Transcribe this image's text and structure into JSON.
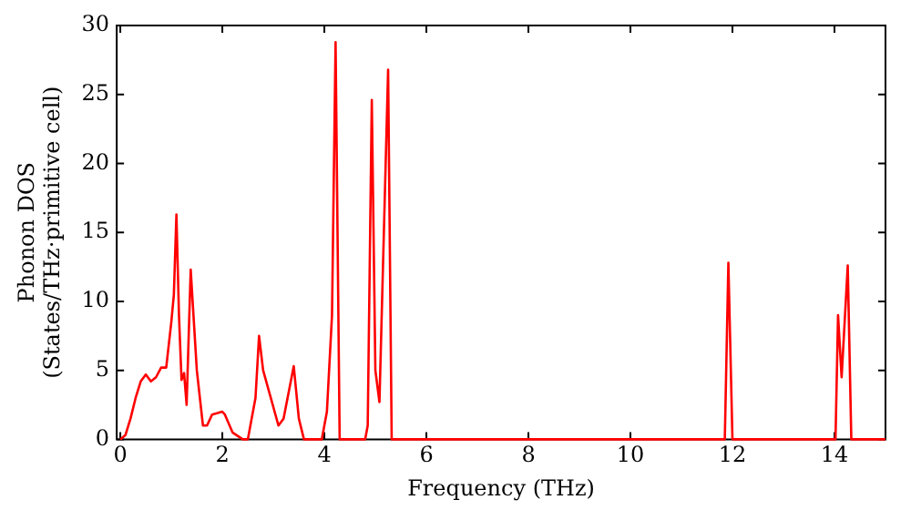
{
  "chart_data": {
    "type": "line",
    "xlabel": "Frequency (THz)",
    "ylabel": "Phonon DOS\n(States/THz·primitive cell)",
    "xlim": [
      -0.07,
      15
    ],
    "ylim": [
      0,
      30
    ],
    "xticks": [
      0,
      2,
      4,
      6,
      8,
      10,
      12,
      14
    ],
    "yticks": [
      0,
      5,
      10,
      15,
      20,
      25,
      30
    ],
    "grid": false,
    "legend": false,
    "marker": "none",
    "line_style": "solid",
    "series": [
      {
        "color": "#ff0000",
        "x": [
          0,
          0.1,
          0.2,
          0.3,
          0.4,
          0.5,
          0.6,
          0.7,
          0.8,
          0.9,
          1.0,
          1.05,
          1.1,
          1.15,
          1.2,
          1.25,
          1.3,
          1.38,
          1.5,
          1.62,
          1.7,
          1.8,
          2.0,
          2.05,
          2.2,
          2.4,
          2.5,
          2.55,
          2.65,
          2.72,
          2.8,
          2.95,
          3.1,
          3.2,
          3.4,
          3.5,
          3.6,
          3.95,
          4.05,
          4.15,
          4.22,
          4.3,
          4.8,
          4.85,
          4.93,
          5.0,
          5.08,
          5.25,
          5.32,
          11.85,
          11.92,
          12.0,
          14.02,
          14.07,
          14.14,
          14.26,
          14.33,
          15
        ],
        "values": [
          0,
          0.3,
          1.5,
          3,
          4.2,
          4.7,
          4.2,
          4.5,
          5.2,
          5.2,
          8.5,
          10.5,
          16.3,
          9,
          4.3,
          4.8,
          2.5,
          12.3,
          5,
          1,
          1,
          1.8,
          2,
          1.8,
          0.5,
          0,
          0,
          1,
          3,
          7.5,
          5,
          3,
          1,
          1.5,
          5.3,
          1.5,
          0,
          0,
          2,
          9,
          28.8,
          0,
          0,
          1,
          24.6,
          5,
          2.7,
          26.8,
          0,
          0,
          12.8,
          0,
          0,
          9,
          4.5,
          12.6,
          0,
          0
        ]
      }
    ]
  }
}
